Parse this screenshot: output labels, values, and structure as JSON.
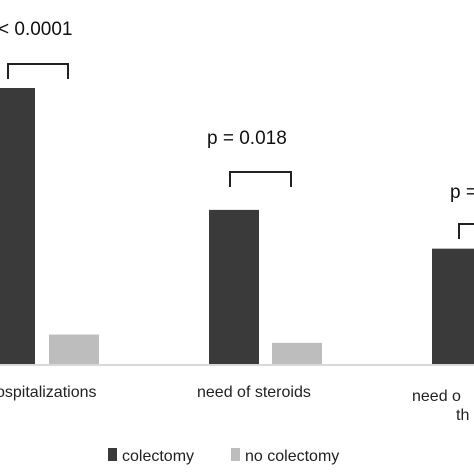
{
  "chart_data": {
    "type": "bar",
    "categories": [
      "hospitalizations",
      "need of steroids",
      "need of biologic therapy"
    ],
    "category_labels_visible": [
      [
        "ospitalizations"
      ],
      [
        "need of steroids"
      ],
      [
        "need o",
        "th"
      ]
    ],
    "series": [
      {
        "name": "colectomy",
        "values": [
          100,
          56,
          42
        ],
        "color": "#3a3a3a"
      },
      {
        "name": "no colectomy",
        "values": [
          11,
          8,
          null
        ],
        "color": "#bdbdbd"
      }
    ],
    "annotations": [
      "< 0.0001",
      "p = 0.018",
      "p ="
    ],
    "ylim": [
      0,
      100
    ],
    "grid": false,
    "legend": {
      "position": "bottom",
      "entries": [
        "colectomy",
        "no colectomy"
      ]
    },
    "title": "",
    "xlabel": "",
    "ylabel": ""
  }
}
